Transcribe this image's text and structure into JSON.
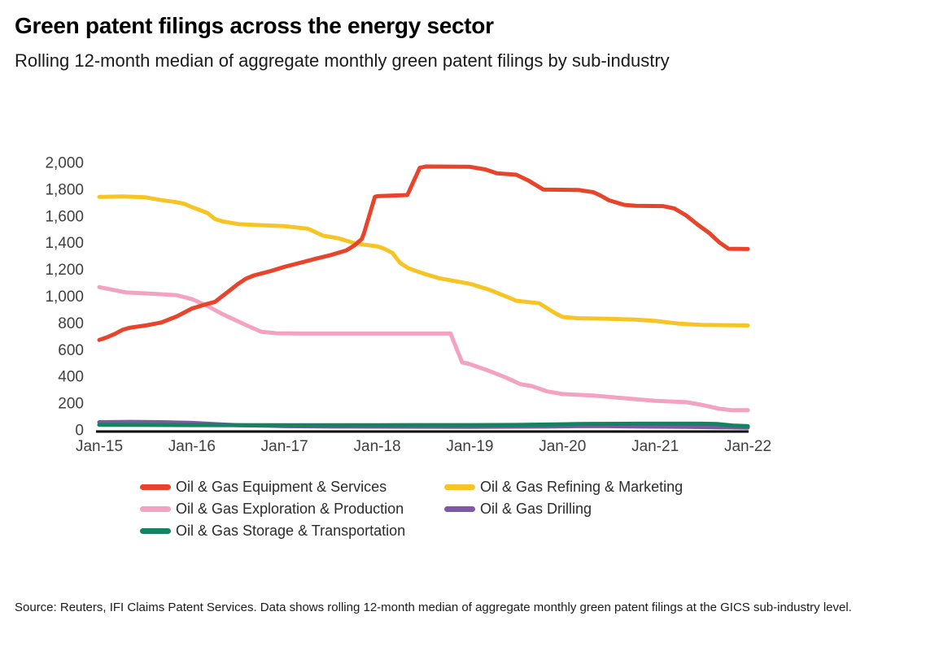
{
  "header": {
    "title": "Green patent filings across the energy sector",
    "subtitle": "Rolling 12-month median of aggregate monthly green patent filings by sub-industry"
  },
  "footer": {
    "source": "Source: Reuters, IFI Claims Patent Services. Data shows rolling 12-month median of aggregate monthly green patent filings at the GICS sub-industry level."
  },
  "chart_data": {
    "type": "line",
    "title": "Green patent filings across the energy sector",
    "xlabel": "",
    "ylabel": "",
    "grid": false,
    "legend_position": "bottom",
    "x_axis": {
      "unit": "month index from Jan-15",
      "range": [
        0,
        84
      ],
      "ticks": [
        {
          "month": 0,
          "label": "Jan-15"
        },
        {
          "month": 12,
          "label": "Jan-16"
        },
        {
          "month": 24,
          "label": "Jan-17"
        },
        {
          "month": 36,
          "label": "Jan-18"
        },
        {
          "month": 48,
          "label": "Jan-19"
        },
        {
          "month": 60,
          "label": "Jan-20"
        },
        {
          "month": 72,
          "label": "Jan-21"
        },
        {
          "month": 84,
          "label": "Jan-22"
        }
      ]
    },
    "y_axis": {
      "range": [
        0,
        2000
      ],
      "ticks": [
        {
          "value": 0,
          "label": "0"
        },
        {
          "value": 200,
          "label": "200"
        },
        {
          "value": 400,
          "label": "400"
        },
        {
          "value": 600,
          "label": "600"
        },
        {
          "value": 800,
          "label": "800"
        },
        {
          "value": 1000,
          "label": "1,000"
        },
        {
          "value": 1200,
          "label": "1,200"
        },
        {
          "value": 1400,
          "label": "1,400"
        },
        {
          "value": 1600,
          "label": "1,600"
        },
        {
          "value": 1800,
          "label": "1,800"
        },
        {
          "value": 2000,
          "label": "2,000"
        }
      ]
    },
    "series": [
      {
        "name": "Oil & Gas Equipment & Services",
        "color": "#e8442b",
        "z": 5,
        "points": [
          [
            0,
            670
          ],
          [
            1,
            690
          ],
          [
            2,
            715
          ],
          [
            3,
            745
          ],
          [
            4,
            762
          ],
          [
            6,
            778
          ],
          [
            8,
            800
          ],
          [
            10,
            845
          ],
          [
            12,
            905
          ],
          [
            14,
            940
          ],
          [
            15,
            955
          ],
          [
            16,
            1000
          ],
          [
            17,
            1045
          ],
          [
            18,
            1090
          ],
          [
            19,
            1128
          ],
          [
            20,
            1152
          ],
          [
            22,
            1182
          ],
          [
            24,
            1217
          ],
          [
            26,
            1247
          ],
          [
            28,
            1277
          ],
          [
            30,
            1305
          ],
          [
            32,
            1340
          ],
          [
            33,
            1375
          ],
          [
            34,
            1425
          ],
          [
            34.3,
            1470
          ],
          [
            35.7,
            1740
          ],
          [
            36,
            1745
          ],
          [
            39.9,
            1754
          ],
          [
            41.5,
            1957
          ],
          [
            42.3,
            1967
          ],
          [
            48,
            1965
          ],
          [
            50,
            1945
          ],
          [
            51.5,
            1917
          ],
          [
            54,
            1906
          ],
          [
            55.5,
            1865
          ],
          [
            57.5,
            1795
          ],
          [
            62,
            1792
          ],
          [
            64,
            1775
          ],
          [
            65,
            1748
          ],
          [
            66,
            1715
          ],
          [
            68,
            1680
          ],
          [
            69.5,
            1673
          ],
          [
            73,
            1671
          ],
          [
            74.5,
            1653
          ],
          [
            76,
            1602
          ],
          [
            77.5,
            1533
          ],
          [
            79,
            1470
          ],
          [
            80.3,
            1400
          ],
          [
            81.5,
            1352
          ],
          [
            84,
            1350
          ]
        ]
      },
      {
        "name": "Oil & Gas Refining & Marketing",
        "color": "#f6c525",
        "z": 1,
        "points": [
          [
            0,
            1740
          ],
          [
            3,
            1743
          ],
          [
            6,
            1737
          ],
          [
            8,
            1716
          ],
          [
            10,
            1700
          ],
          [
            11,
            1688
          ],
          [
            12,
            1663
          ],
          [
            13,
            1642
          ],
          [
            14,
            1620
          ],
          [
            15,
            1574
          ],
          [
            16,
            1556
          ],
          [
            18,
            1537
          ],
          [
            20,
            1531
          ],
          [
            24,
            1521
          ],
          [
            27,
            1502
          ],
          [
            29,
            1450
          ],
          [
            31,
            1430
          ],
          [
            33,
            1395
          ],
          [
            34,
            1385
          ],
          [
            36,
            1370
          ],
          [
            37,
            1350
          ],
          [
            38,
            1320
          ],
          [
            38.5,
            1280
          ],
          [
            39,
            1245
          ],
          [
            40,
            1207
          ],
          [
            42,
            1166
          ],
          [
            44,
            1132
          ],
          [
            48,
            1090
          ],
          [
            50.5,
            1046
          ],
          [
            52.7,
            995
          ],
          [
            54,
            963
          ],
          [
            57,
            944
          ],
          [
            59,
            872
          ],
          [
            60,
            842
          ],
          [
            62,
            832
          ],
          [
            66,
            828
          ],
          [
            69.5,
            822
          ],
          [
            72,
            812
          ],
          [
            75,
            792
          ],
          [
            78,
            783
          ],
          [
            84,
            778
          ]
        ]
      },
      {
        "name": "Oil & Gas Exploration & Production",
        "color": "#f2a3c1",
        "z": 2,
        "points": [
          [
            0,
            1065
          ],
          [
            2,
            1042
          ],
          [
            3.5,
            1025
          ],
          [
            7,
            1015
          ],
          [
            10,
            1005
          ],
          [
            12,
            975
          ],
          [
            14,
            924
          ],
          [
            16,
            862
          ],
          [
            19,
            781
          ],
          [
            21,
            731
          ],
          [
            23,
            720
          ],
          [
            26,
            718
          ],
          [
            45.5,
            718
          ],
          [
            47,
            502
          ],
          [
            48,
            489
          ],
          [
            50.5,
            438
          ],
          [
            52.7,
            388
          ],
          [
            54.5,
            340
          ],
          [
            56,
            325
          ],
          [
            58,
            285
          ],
          [
            60,
            265
          ],
          [
            64,
            254
          ],
          [
            68,
            234
          ],
          [
            72,
            214
          ],
          [
            76,
            204
          ],
          [
            78,
            185
          ],
          [
            80.3,
            155
          ],
          [
            82,
            144
          ],
          [
            84,
            144
          ]
        ]
      },
      {
        "name": "Oil & Gas Drilling",
        "color": "#7f58a6",
        "z": 3,
        "points": [
          [
            0,
            55
          ],
          [
            4,
            57
          ],
          [
            8,
            55
          ],
          [
            12,
            49
          ],
          [
            14,
            43
          ],
          [
            16,
            37
          ],
          [
            18,
            32
          ],
          [
            22,
            28
          ],
          [
            24,
            25
          ],
          [
            30,
            22
          ],
          [
            36,
            21
          ],
          [
            48,
            20
          ],
          [
            58,
            22
          ],
          [
            62,
            25
          ],
          [
            66,
            25
          ],
          [
            70,
            22
          ],
          [
            76,
            20
          ],
          [
            80,
            17
          ],
          [
            84,
            14
          ]
        ]
      },
      {
        "name": "Oil & Gas Storage & Transportation",
        "color": "#15835f",
        "z": 4,
        "points": [
          [
            0,
            35
          ],
          [
            6,
            34
          ],
          [
            12,
            33
          ],
          [
            24,
            32
          ],
          [
            36,
            32
          ],
          [
            48,
            33
          ],
          [
            54,
            34
          ],
          [
            58,
            37
          ],
          [
            60,
            39
          ],
          [
            62,
            41
          ],
          [
            64,
            42
          ],
          [
            70,
            43
          ],
          [
            78,
            43
          ],
          [
            80,
            41
          ],
          [
            82,
            30
          ],
          [
            84,
            25
          ]
        ]
      }
    ]
  }
}
